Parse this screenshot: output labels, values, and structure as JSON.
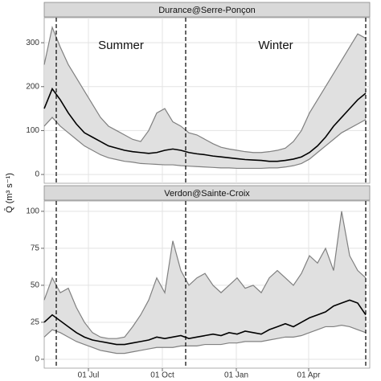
{
  "ylabel": "Q̄ (m³ s⁻¹)",
  "chart_data": [
    {
      "type": "line",
      "title": "Durance@Serre-Ponçon",
      "grid": true,
      "band_color": "#e0e0e0",
      "annotations": [
        "Summer",
        "Winter"
      ],
      "xlim": [
        6,
        411
      ],
      "ylim": [
        -20,
        357
      ],
      "yticks": [
        0,
        100,
        200,
        300
      ],
      "vlines": [
        21,
        182,
        406
      ],
      "x": [
        6,
        16,
        26,
        36,
        46,
        56,
        66,
        76,
        86,
        96,
        106,
        116,
        126,
        136,
        146,
        156,
        166,
        176,
        186,
        196,
        206,
        216,
        226,
        236,
        246,
        256,
        266,
        276,
        286,
        296,
        306,
        316,
        326,
        336,
        346,
        356,
        366,
        376,
        386,
        396,
        406
      ],
      "series": [
        {
          "name": "upper",
          "color": "#808080",
          "values": [
            250,
            335,
            290,
            250,
            220,
            190,
            160,
            130,
            110,
            100,
            90,
            80,
            75,
            100,
            140,
            150,
            120,
            110,
            95,
            90,
            80,
            70,
            62,
            58,
            55,
            52,
            50,
            50,
            52,
            55,
            60,
            75,
            100,
            140,
            170,
            200,
            230,
            260,
            290,
            320,
            310
          ]
        },
        {
          "name": "lower",
          "color": "#808080",
          "values": [
            110,
            130,
            110,
            95,
            80,
            65,
            55,
            45,
            38,
            34,
            30,
            28,
            25,
            24,
            23,
            22,
            22,
            20,
            19,
            18,
            17,
            16,
            15,
            15,
            14,
            14,
            14,
            14,
            15,
            15,
            17,
            20,
            25,
            35,
            50,
            65,
            80,
            95,
            105,
            115,
            125
          ]
        },
        {
          "name": "median",
          "color": "#000000",
          "values": [
            150,
            195,
            170,
            140,
            115,
            95,
            85,
            75,
            65,
            60,
            55,
            52,
            50,
            48,
            50,
            55,
            58,
            55,
            50,
            47,
            45,
            42,
            40,
            38,
            36,
            34,
            33,
            32,
            30,
            30,
            32,
            35,
            40,
            50,
            65,
            85,
            110,
            130,
            150,
            170,
            185
          ]
        }
      ]
    },
    {
      "type": "line",
      "title": "Verdon@Sainte-Croix",
      "grid": true,
      "band_color": "#e0e0e0",
      "xlim": [
        6,
        411
      ],
      "ylim": [
        -6,
        107
      ],
      "yticks": [
        0,
        25,
        50,
        75,
        100
      ],
      "vlines": [
        21,
        182,
        406
      ],
      "xticks": [
        {
          "value": 61,
          "label": "01 Jul"
        },
        {
          "value": 153,
          "label": "01 Oct"
        },
        {
          "value": 245,
          "label": "01 Jan"
        },
        {
          "value": 335,
          "label": "01 Apr"
        }
      ],
      "x": [
        6,
        16,
        26,
        36,
        46,
        56,
        66,
        76,
        86,
        96,
        106,
        116,
        126,
        136,
        146,
        156,
        166,
        176,
        186,
        196,
        206,
        216,
        226,
        236,
        246,
        256,
        266,
        276,
        286,
        296,
        306,
        316,
        326,
        336,
        346,
        356,
        366,
        376,
        386,
        396,
        406
      ],
      "series": [
        {
          "name": "upper",
          "color": "#808080",
          "values": [
            40,
            55,
            45,
            48,
            35,
            25,
            18,
            15,
            14,
            14,
            15,
            22,
            30,
            40,
            55,
            45,
            80,
            60,
            50,
            55,
            58,
            50,
            45,
            50,
            55,
            48,
            50,
            45,
            55,
            60,
            55,
            50,
            58,
            70,
            65,
            75,
            60,
            100,
            70,
            60,
            55
          ]
        },
        {
          "name": "lower",
          "color": "#808080",
          "values": [
            15,
            20,
            18,
            15,
            12,
            10,
            8,
            6,
            5,
            4,
            4,
            5,
            6,
            7,
            8,
            8,
            8,
            9,
            9,
            9,
            10,
            10,
            10,
            11,
            11,
            12,
            12,
            12,
            13,
            14,
            15,
            15,
            16,
            18,
            20,
            22,
            22,
            23,
            22,
            20,
            18
          ]
        },
        {
          "name": "median",
          "color": "#000000",
          "values": [
            25,
            30,
            26,
            22,
            18,
            15,
            13,
            12,
            11,
            10,
            10,
            11,
            12,
            13,
            15,
            14,
            15,
            16,
            14,
            15,
            16,
            17,
            16,
            18,
            17,
            19,
            18,
            17,
            20,
            22,
            24,
            22,
            25,
            28,
            30,
            32,
            36,
            38,
            40,
            38,
            30
          ]
        }
      ]
    }
  ]
}
